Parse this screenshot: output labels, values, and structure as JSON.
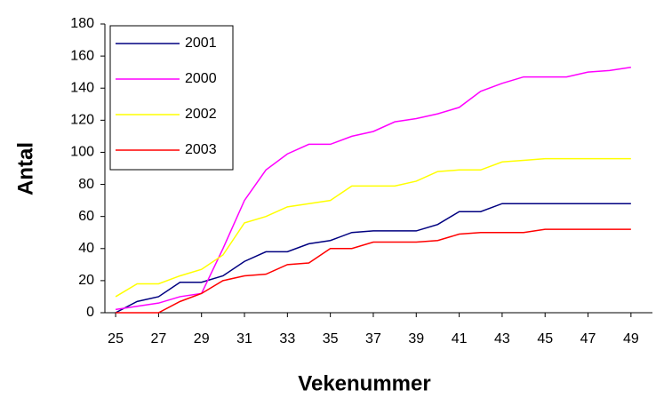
{
  "chart_data": {
    "type": "line",
    "xlabel": "Vekenummer",
    "ylabel": "Antal",
    "x": [
      25,
      26,
      27,
      28,
      29,
      30,
      31,
      32,
      33,
      34,
      35,
      36,
      37,
      38,
      39,
      40,
      41,
      42,
      43,
      44,
      45,
      46,
      47,
      48,
      49
    ],
    "series": [
      {
        "name": "2001",
        "color": "#000080",
        "values": [
          0,
          7,
          10,
          19,
          19,
          23,
          32,
          38,
          38,
          43,
          45,
          50,
          51,
          51,
          51,
          55,
          63,
          63,
          68,
          68,
          68,
          68,
          68,
          68,
          68
        ]
      },
      {
        "name": "2000",
        "color": "#ff00ff",
        "values": [
          2,
          4,
          6,
          10,
          12,
          40,
          70,
          89,
          99,
          105,
          105,
          110,
          113,
          119,
          121,
          124,
          128,
          138,
          143,
          147,
          147,
          147,
          150,
          151,
          153
        ]
      },
      {
        "name": "2002",
        "color": "#ffff00",
        "values": [
          10,
          18,
          18,
          23,
          27,
          36,
          56,
          60,
          66,
          68,
          70,
          79,
          79,
          79,
          82,
          88,
          89,
          89,
          94,
          95,
          96,
          96,
          96,
          96,
          96
        ]
      },
      {
        "name": "2003",
        "color": "#ff0000",
        "values": [
          0,
          0,
          0,
          7,
          12,
          20,
          23,
          24,
          30,
          31,
          40,
          40,
          44,
          44,
          44,
          45,
          49,
          50,
          50,
          50,
          52,
          52,
          52,
          52,
          52
        ]
      }
    ],
    "xlim": [
      24.5,
      50
    ],
    "xticks": [
      25,
      27,
      29,
      31,
      33,
      35,
      37,
      39,
      41,
      43,
      45,
      47,
      49
    ],
    "ylim": [
      0,
      180
    ],
    "yticks": [
      0,
      20,
      40,
      60,
      80,
      100,
      120,
      140,
      160,
      180
    ],
    "legend": "upper left",
    "grid": false
  }
}
